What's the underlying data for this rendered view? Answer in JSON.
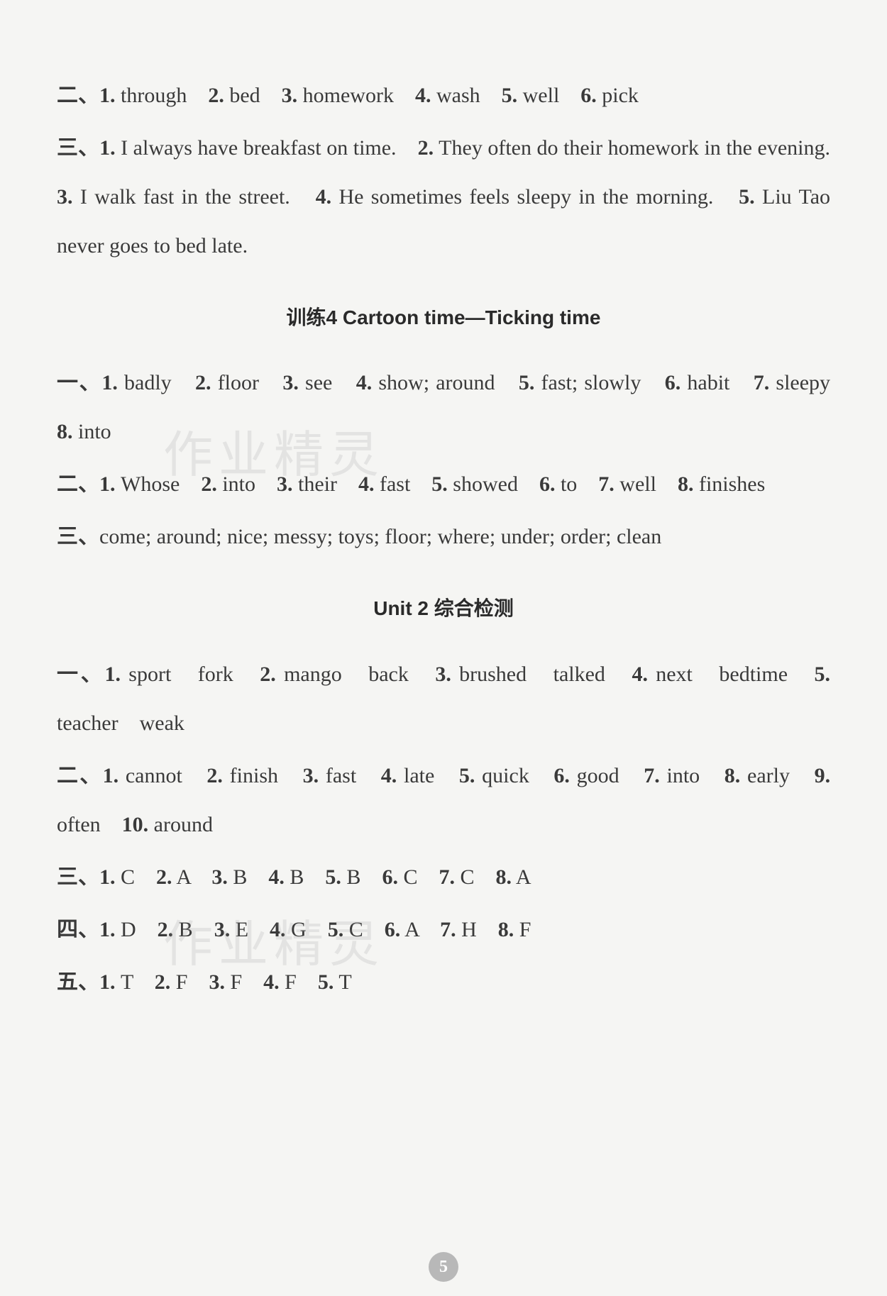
{
  "block1": {
    "line1_prefix": "二、",
    "line1_items": [
      {
        "num": "1.",
        "text": "through"
      },
      {
        "num": "2.",
        "text": "bed"
      },
      {
        "num": "3.",
        "text": "homework"
      },
      {
        "num": "4.",
        "text": "wash"
      },
      {
        "num": "5.",
        "text": "well"
      },
      {
        "num": "6.",
        "text": "pick"
      }
    ],
    "line2_prefix": "三、",
    "sentences": [
      {
        "num": "1.",
        "text": "I always have breakfast on time."
      },
      {
        "num": "2.",
        "text": "They often do their homework in the evening."
      },
      {
        "num": "3.",
        "text": "I walk fast in the street."
      },
      {
        "num": "4.",
        "text": "He sometimes feels sleepy in the morning."
      },
      {
        "num": "5.",
        "text": "Liu Tao never goes to bed late."
      }
    ]
  },
  "section1_title": "训练4  Cartoon time—Ticking time",
  "block2": {
    "yi_prefix": "一、",
    "yi_items": [
      {
        "num": "1.",
        "text": "badly"
      },
      {
        "num": "2.",
        "text": "floor"
      },
      {
        "num": "3.",
        "text": "see"
      },
      {
        "num": "4.",
        "text": "show; around"
      },
      {
        "num": "5.",
        "text": "fast; slowly"
      },
      {
        "num": "6.",
        "text": "habit"
      },
      {
        "num": "7.",
        "text": "sleepy"
      },
      {
        "num": "8.",
        "text": "into"
      }
    ],
    "er_prefix": "二、",
    "er_items": [
      {
        "num": "1.",
        "text": "Whose"
      },
      {
        "num": "2.",
        "text": "into"
      },
      {
        "num": "3.",
        "text": "their"
      },
      {
        "num": "4.",
        "text": "fast"
      },
      {
        "num": "5.",
        "text": "showed"
      },
      {
        "num": "6.",
        "text": "to"
      },
      {
        "num": "7.",
        "text": "well"
      },
      {
        "num": "8.",
        "text": "finishes"
      }
    ],
    "san_prefix": "三、",
    "san_text": "come; around; nice; messy; toys; floor; where; under; order; clean"
  },
  "section2_title": "Unit 2 综合检测",
  "block3": {
    "yi_prefix": "一、",
    "yi_items": [
      {
        "num": "1.",
        "text": "sport　fork"
      },
      {
        "num": "2.",
        "text": "mango　back"
      },
      {
        "num": "3.",
        "text": "brushed　talked"
      },
      {
        "num": "4.",
        "text": "next　bedtime"
      },
      {
        "num": "5.",
        "text": "teacher　weak"
      }
    ],
    "er_prefix": "二、",
    "er_items": [
      {
        "num": "1.",
        "text": "cannot"
      },
      {
        "num": "2.",
        "text": "finish"
      },
      {
        "num": "3.",
        "text": "fast"
      },
      {
        "num": "4.",
        "text": "late"
      },
      {
        "num": "5.",
        "text": "quick"
      },
      {
        "num": "6.",
        "text": "good"
      },
      {
        "num": "7.",
        "text": "into"
      },
      {
        "num": "8.",
        "text": "early"
      },
      {
        "num": "9.",
        "text": "often"
      },
      {
        "num": "10.",
        "text": "around"
      }
    ],
    "san_prefix": "三、",
    "san_items": [
      {
        "num": "1.",
        "text": "C"
      },
      {
        "num": "2.",
        "text": "A"
      },
      {
        "num": "3.",
        "text": "B"
      },
      {
        "num": "4.",
        "text": "B"
      },
      {
        "num": "5.",
        "text": "B"
      },
      {
        "num": "6.",
        "text": "C"
      },
      {
        "num": "7.",
        "text": "C"
      },
      {
        "num": "8.",
        "text": "A"
      }
    ],
    "si_prefix": "四、",
    "si_items": [
      {
        "num": "1.",
        "text": "D"
      },
      {
        "num": "2.",
        "text": "B"
      },
      {
        "num": "3.",
        "text": "E"
      },
      {
        "num": "4.",
        "text": "G"
      },
      {
        "num": "5.",
        "text": "C"
      },
      {
        "num": "6.",
        "text": "A"
      },
      {
        "num": "7.",
        "text": "H"
      },
      {
        "num": "8.",
        "text": "F"
      }
    ],
    "wu_prefix": "五、",
    "wu_items": [
      {
        "num": "1.",
        "text": "T"
      },
      {
        "num": "2.",
        "text": "F"
      },
      {
        "num": "3.",
        "text": "F"
      },
      {
        "num": "4.",
        "text": "F"
      },
      {
        "num": "5.",
        "text": "T"
      }
    ]
  },
  "page_number": "5",
  "watermark_text": "作业精灵"
}
